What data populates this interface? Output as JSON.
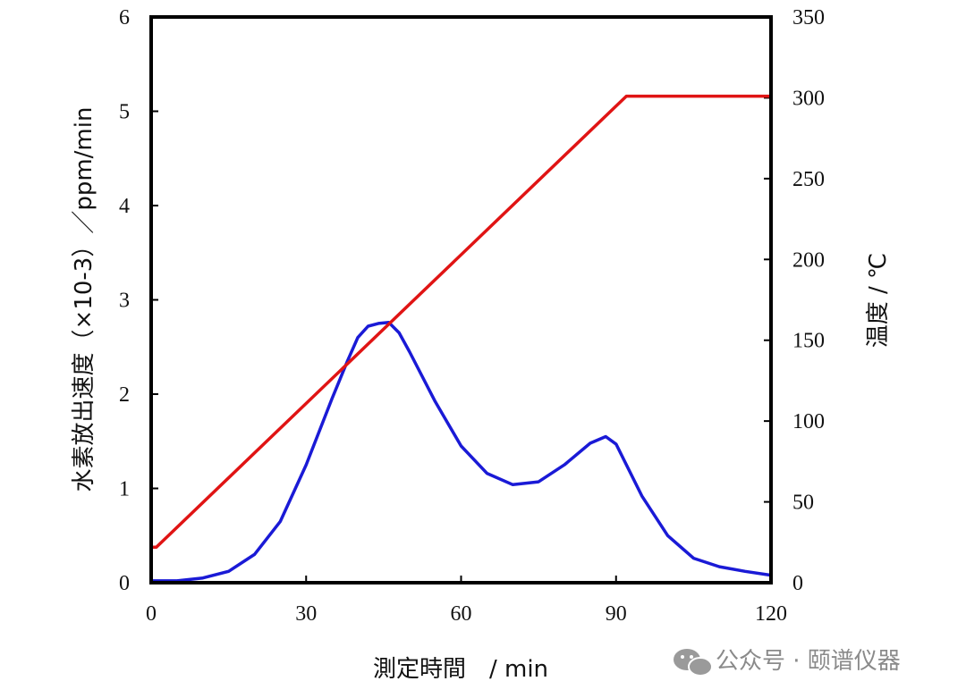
{
  "chart_data": {
    "type": "line",
    "xlabel": "測定時間　/ min",
    "ylabel_left": "水素放出速度（×10-3）／ppm/min",
    "ylabel_right": "温度 / ℃",
    "xlim": [
      0,
      120
    ],
    "ylim_left": [
      0,
      6
    ],
    "ylim_right": [
      0,
      350
    ],
    "x_ticks": [
      "0",
      "30",
      "60",
      "90",
      "120"
    ],
    "y_ticks_left": [
      "0",
      "1",
      "2",
      "3",
      "4",
      "5",
      "6"
    ],
    "y_ticks_right": [
      "0",
      "50",
      "100",
      "150",
      "200",
      "250",
      "300",
      "350"
    ],
    "grid": false,
    "series": [
      {
        "axis": "left",
        "color": "#1a1ad6",
        "x": [
          0,
          5,
          10,
          15,
          20,
          25,
          30,
          35,
          38,
          40,
          42,
          44,
          46,
          48,
          50,
          55,
          60,
          65,
          70,
          75,
          80,
          85,
          88,
          90,
          95,
          100,
          105,
          110,
          115,
          120
        ],
        "y": [
          0.02,
          0.02,
          0.05,
          0.12,
          0.3,
          0.65,
          1.25,
          1.95,
          2.35,
          2.6,
          2.72,
          2.75,
          2.76,
          2.65,
          2.45,
          1.92,
          1.45,
          1.16,
          1.04,
          1.07,
          1.25,
          1.48,
          1.55,
          1.47,
          0.92,
          0.5,
          0.26,
          0.17,
          0.12,
          0.08
        ]
      },
      {
        "axis": "right",
        "color": "#e01414",
        "x": [
          0,
          1,
          92,
          120
        ],
        "y": [
          22,
          22,
          301,
          301
        ]
      }
    ]
  },
  "watermark": {
    "text": "公众号 · 颐谱仪器",
    "icon": "wechat-icon"
  }
}
